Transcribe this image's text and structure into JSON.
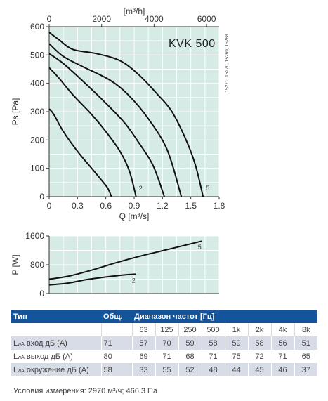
{
  "chart_data": [
    {
      "type": "line",
      "model_label": "KVK 500",
      "side_note": "15271, 15270, 15269, 15268",
      "xlabel": "Q [m³/s]",
      "x2label": "[m³/h]",
      "ylabel": "Ps [Pa]",
      "xlim": [
        0,
        1.8
      ],
      "ylim": [
        0,
        600
      ],
      "x_ticks": [
        "0",
        "0.3",
        "0.6",
        "0.9",
        "1.2",
        "1.5",
        "1.8"
      ],
      "x2_ticks": [
        "0",
        "2000",
        "4000",
        "6000"
      ],
      "y_ticks": [
        "0",
        "100",
        "200",
        "300",
        "400",
        "500",
        "600"
      ],
      "grid": true,
      "series": [
        {
          "name": "",
          "x": [
            0,
            0.05,
            0.15,
            0.3,
            0.45,
            0.55,
            0.62,
            0.66
          ],
          "y": [
            310,
            290,
            230,
            160,
            100,
            60,
            30,
            0
          ]
        },
        {
          "name": "2",
          "x": [
            0,
            0.1,
            0.25,
            0.45,
            0.6,
            0.75,
            0.85,
            0.92
          ],
          "y": [
            455,
            420,
            360,
            290,
            230,
            160,
            90,
            0
          ]
        },
        {
          "name": "",
          "x": [
            0,
            0.15,
            0.35,
            0.6,
            0.8,
            0.95,
            1.1,
            1.22
          ],
          "y": [
            505,
            470,
            410,
            330,
            260,
            190,
            110,
            0
          ]
        },
        {
          "name": "",
          "x": [
            0,
            0.15,
            0.35,
            0.65,
            0.85,
            1.05,
            1.25,
            1.4
          ],
          "y": [
            540,
            495,
            460,
            410,
            355,
            275,
            165,
            0
          ]
        },
        {
          "name": "5",
          "x": [
            0,
            0.1,
            0.25,
            0.5,
            0.75,
            0.95,
            1.15,
            1.3,
            1.45,
            1.55,
            1.63
          ],
          "y": [
            580,
            555,
            520,
            505,
            480,
            430,
            360,
            300,
            200,
            110,
            0
          ]
        }
      ]
    },
    {
      "type": "line",
      "ylabel": "P [W]",
      "xlim": [
        0,
        1.8
      ],
      "ylim": [
        0,
        1600
      ],
      "y_ticks": [
        "0",
        "800",
        "1600"
      ],
      "grid": true,
      "series": [
        {
          "name": "5",
          "x": [
            0,
            0.2,
            0.45,
            0.7,
            0.95,
            1.2,
            1.45,
            1.62
          ],
          "y": [
            400,
            480,
            650,
            850,
            1030,
            1190,
            1350,
            1460
          ]
        },
        {
          "name": "2",
          "x": [
            0,
            0.2,
            0.4,
            0.6,
            0.8,
            0.92
          ],
          "y": [
            240,
            290,
            390,
            460,
            520,
            540
          ]
        }
      ]
    }
  ],
  "table": {
    "headers": [
      "Тип",
      "Общ.",
      "Диапазон частот [Гц]"
    ],
    "frequencies": [
      "63",
      "125",
      "250",
      "500",
      "1k",
      "2k",
      "4k",
      "8k"
    ],
    "rows": [
      {
        "prefix": "L",
        "sub": "wA",
        "label": " вход дБ (A)",
        "total": "71",
        "values": [
          "57",
          "70",
          "59",
          "58",
          "59",
          "58",
          "56",
          "51"
        ]
      },
      {
        "prefix": "L",
        "sub": "wA",
        "label": " выход дБ (A)",
        "total": "80",
        "values": [
          "69",
          "71",
          "68",
          "71",
          "75",
          "72",
          "71",
          "65"
        ]
      },
      {
        "prefix": "L",
        "sub": "wA",
        "label": " окружение дБ (A)",
        "total": "58",
        "values": [
          "33",
          "55",
          "52",
          "48",
          "44",
          "45",
          "46",
          "37"
        ]
      }
    ]
  },
  "conditions": "Условия измерения: 2970 м³/ч; 466.3 Па",
  "colors": {
    "plot_bg": "#d6ebe5",
    "grid": "#ffffff",
    "axis": "#333333",
    "curve": "#111111",
    "header_bg": "#13549a",
    "row_shade": "#d8dce6"
  }
}
